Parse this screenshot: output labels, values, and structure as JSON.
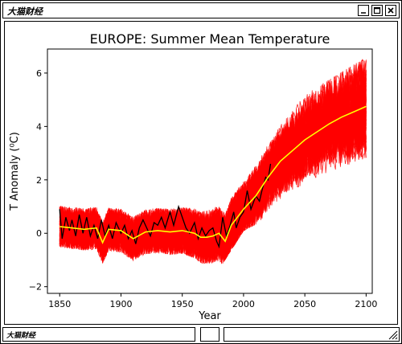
{
  "window": {
    "title": "大猫财经",
    "status_label": "大猫财经"
  },
  "chart_data": {
    "type": "line",
    "title": "EUROPE: Summer Mean Temperature",
    "xlabel": "Year",
    "ylabel": "T Anomaly (⁰C)",
    "xlim": [
      1840,
      2105
    ],
    "ylim": [
      -2.25,
      6.9
    ],
    "xticks": [
      1850,
      1900,
      1950,
      2000,
      2050,
      2100
    ],
    "yticks": [
      -2,
      0,
      2,
      4,
      6
    ],
    "grid": false,
    "legend": "none",
    "series": [
      {
        "role": "ensemble_members",
        "color": "#ff0000",
        "count_visible": "many",
        "x_range": [
          1850,
          2100
        ],
        "envelope_lower": [
          [
            1850,
            -1.0
          ],
          [
            1900,
            -1.2
          ],
          [
            1950,
            -1.3
          ],
          [
            1975,
            -1.7
          ],
          [
            2000,
            0.1
          ],
          [
            2050,
            1.2
          ],
          [
            2100,
            2.4
          ]
        ],
        "envelope_upper": [
          [
            1850,
            1.5
          ],
          [
            1900,
            1.4
          ],
          [
            1950,
            1.5
          ],
          [
            1975,
            1.6
          ],
          [
            2000,
            3.4
          ],
          [
            2050,
            5.2
          ],
          [
            2100,
            6.6
          ]
        ]
      },
      {
        "role": "ensemble_mean",
        "color": "#ffff00",
        "points": [
          [
            1850,
            0.25
          ],
          [
            1860,
            0.2
          ],
          [
            1870,
            0.15
          ],
          [
            1880,
            0.2
          ],
          [
            1885,
            -0.35
          ],
          [
            1890,
            0.15
          ],
          [
            1900,
            0.1
          ],
          [
            1910,
            -0.2
          ],
          [
            1920,
            0.05
          ],
          [
            1930,
            0.1
          ],
          [
            1940,
            0.05
          ],
          [
            1950,
            0.1
          ],
          [
            1960,
            0.0
          ],
          [
            1965,
            -0.15
          ],
          [
            1970,
            -0.15
          ],
          [
            1975,
            -0.1
          ],
          [
            1980,
            0.0
          ],
          [
            1985,
            -0.3
          ],
          [
            1990,
            0.3
          ],
          [
            2000,
            0.9
          ],
          [
            2010,
            1.4
          ],
          [
            2020,
            2.1
          ],
          [
            2030,
            2.7
          ],
          [
            2040,
            3.1
          ],
          [
            2050,
            3.5
          ],
          [
            2060,
            3.8
          ],
          [
            2070,
            4.1
          ],
          [
            2080,
            4.35
          ],
          [
            2090,
            4.55
          ],
          [
            2100,
            4.75
          ]
        ]
      },
      {
        "role": "observations",
        "color": "#000000",
        "points": [
          [
            1850,
            0.9
          ],
          [
            1852,
            -0.2
          ],
          [
            1855,
            0.6
          ],
          [
            1858,
            0.1
          ],
          [
            1860,
            0.5
          ],
          [
            1863,
            -0.1
          ],
          [
            1866,
            0.7
          ],
          [
            1869,
            0.0
          ],
          [
            1872,
            0.6
          ],
          [
            1875,
            -0.1
          ],
          [
            1878,
            0.3
          ],
          [
            1881,
            -0.2
          ],
          [
            1884,
            0.5
          ],
          [
            1887,
            -0.1
          ],
          [
            1890,
            0.3
          ],
          [
            1893,
            -0.2
          ],
          [
            1896,
            0.4
          ],
          [
            1900,
            0.0
          ],
          [
            1903,
            0.3
          ],
          [
            1906,
            -0.2
          ],
          [
            1909,
            0.1
          ],
          [
            1912,
            -0.4
          ],
          [
            1915,
            0.2
          ],
          [
            1918,
            0.5
          ],
          [
            1921,
            0.2
          ],
          [
            1924,
            -0.1
          ],
          [
            1927,
            0.4
          ],
          [
            1930,
            0.3
          ],
          [
            1933,
            0.6
          ],
          [
            1936,
            0.2
          ],
          [
            1940,
            0.8
          ],
          [
            1943,
            0.3
          ],
          [
            1947,
            1.0
          ],
          [
            1950,
            0.6
          ],
          [
            1953,
            0.2
          ],
          [
            1956,
            0.0
          ],
          [
            1960,
            0.4
          ],
          [
            1963,
            -0.2
          ],
          [
            1966,
            0.2
          ],
          [
            1969,
            -0.1
          ],
          [
            1972,
            0.1
          ],
          [
            1975,
            0.2
          ],
          [
            1978,
            -0.3
          ],
          [
            1980,
            -0.5
          ],
          [
            1983,
            0.6
          ],
          [
            1986,
            -0.1
          ],
          [
            1989,
            0.3
          ],
          [
            1992,
            0.8
          ],
          [
            1994,
            0.2
          ],
          [
            1997,
            0.6
          ],
          [
            2000,
            0.8
          ],
          [
            2003,
            1.6
          ],
          [
            2006,
            0.9
          ],
          [
            2010,
            1.4
          ],
          [
            2013,
            1.2
          ],
          [
            2015,
            1.6
          ],
          [
            2018,
            2.1
          ],
          [
            2020,
            2.0
          ],
          [
            2022,
            2.6
          ]
        ]
      }
    ]
  }
}
